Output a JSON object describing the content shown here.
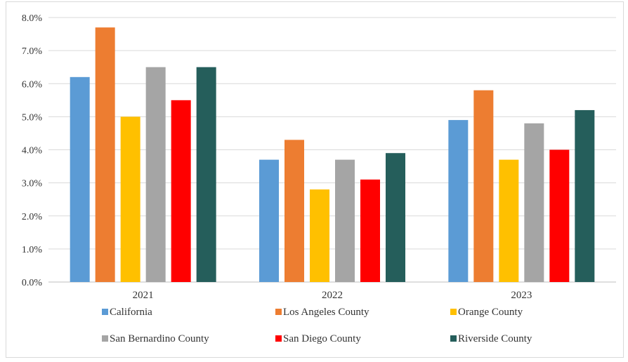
{
  "chart_data": {
    "type": "bar",
    "categories": [
      "2021",
      "2022",
      "2023"
    ],
    "series": [
      {
        "name": "California",
        "color": "#5b9bd5",
        "values": [
          6.2,
          3.7,
          4.9
        ]
      },
      {
        "name": "Los Angeles County",
        "color": "#ed7d31",
        "values": [
          7.7,
          4.3,
          5.8
        ]
      },
      {
        "name": "Orange County",
        "color": "#ffc000",
        "values": [
          5.0,
          2.8,
          3.7
        ]
      },
      {
        "name": "San Bernardino County",
        "color": "#a5a5a5",
        "values": [
          6.5,
          3.7,
          4.8
        ]
      },
      {
        "name": "San Diego County",
        "color": "#ff0000",
        "values": [
          5.5,
          3.1,
          4.0
        ]
      },
      {
        "name": "Riverside County",
        "color": "#255e5b",
        "values": [
          6.5,
          3.9,
          5.2
        ]
      }
    ],
    "yticks": [
      "0.0%",
      "1.0%",
      "2.0%",
      "3.0%",
      "4.0%",
      "5.0%",
      "6.0%",
      "7.0%",
      "8.0%"
    ],
    "ylim": [
      0,
      8
    ],
    "grid": true,
    "legend": "bottom"
  }
}
